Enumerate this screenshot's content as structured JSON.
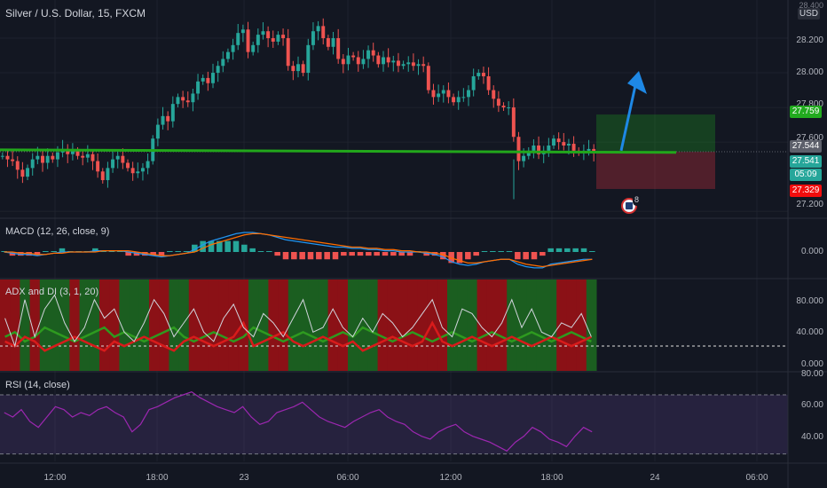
{
  "header": {
    "symbol_title": "Silver / U.S. Dollar, 15, FXCM",
    "currency": "USD",
    "top_tick": "28.400"
  },
  "colors": {
    "up": "#26a69a",
    "down": "#ef5350",
    "bg": "#131722",
    "grid": "#1e222d",
    "support": "#22a71b",
    "macd": "#2196f3",
    "signal": "#ff6d00",
    "rsi": "#9c27b0",
    "adx": "#d1d4dc",
    "di_plus": "#2e9a1f",
    "di_minus": "#d81b1b",
    "arrow": "#2196f3"
  },
  "price_axis": {
    "ticks": [
      "28.200",
      "28.000",
      "27.800",
      "27.600",
      "27.200"
    ],
    "tag_top": "27.759",
    "tag_last": "27.544",
    "tag_current": "27.541",
    "tag_countdown": "05:09",
    "tag_stop": "27.329"
  },
  "events": {
    "badge_count": "8"
  },
  "time_axis": [
    "12:00",
    "18:00",
    "23",
    "06:00",
    "12:00",
    "18:00",
    "24",
    "06:00"
  ],
  "macd": {
    "label": "MACD (12, 26, close, 9)",
    "ticks": [
      "0.000"
    ]
  },
  "adx": {
    "label": "ADX and DI (3, 1, 20)",
    "ticks": [
      "80.000",
      "40.000",
      "0.000"
    ],
    "threshold": 20
  },
  "rsi": {
    "label": "RSI (14, close)",
    "ticks": [
      "80.00",
      "60.00",
      "40.00"
    ],
    "upper": 70,
    "lower": 30
  },
  "chart_data": {
    "type": "candlestick",
    "title": "Silver / U.S. Dollar, 15, FXCM",
    "ylim": [
      27.17,
      28.4
    ],
    "support_level": 27.541,
    "position": {
      "target": 27.759,
      "entry": 27.544,
      "stop": 27.329
    },
    "close_path": [
      27.52,
      27.5,
      27.49,
      27.44,
      27.4,
      27.45,
      27.5,
      27.52,
      27.48,
      27.52,
      27.5,
      27.54,
      27.56,
      27.53,
      27.55,
      27.52,
      27.51,
      27.53,
      27.49,
      27.43,
      27.38,
      27.45,
      27.5,
      27.52,
      27.48,
      27.45,
      27.42,
      27.43,
      27.45,
      27.49,
      27.62,
      27.7,
      27.75,
      27.72,
      27.82,
      27.86,
      27.84,
      27.83,
      27.88,
      27.95,
      27.97,
      27.94,
      28.0,
      28.04,
      28.08,
      28.12,
      28.16,
      28.23,
      28.25,
      28.12,
      28.16,
      28.22,
      28.24,
      28.2,
      28.18,
      28.22,
      28.2,
      28.04,
      28.01,
      28.05,
      28.0,
      28.16,
      28.24,
      28.27,
      28.2,
      28.15,
      28.2,
      28.08,
      28.05,
      28.1,
      28.09,
      28.05,
      28.08,
      28.13,
      28.1,
      28.05,
      28.09,
      28.06,
      28.07,
      28.04,
      28.05,
      28.06,
      28.04,
      28.05,
      28.04,
      27.9,
      27.86,
      27.88,
      27.9,
      27.86,
      27.83,
      27.86,
      27.86,
      27.9,
      27.98,
      28.0,
      27.98,
      27.9,
      27.85,
      27.81,
      27.8,
      27.8,
      27.63,
      27.49,
      27.52,
      27.55,
      27.58,
      27.53,
      27.55,
      27.58,
      27.62,
      27.6,
      27.58,
      27.59,
      27.55,
      27.54,
      27.55,
      27.56,
      27.54
    ],
    "macd_line": [
      0.0,
      -0.01,
      -0.02,
      -0.02,
      -0.03,
      -0.02,
      -0.01,
      0.0,
      0.0,
      0.0,
      0.0,
      0.01,
      0.01,
      0.01,
      0.01,
      0.0,
      -0.01,
      -0.02,
      -0.03,
      -0.04,
      -0.03,
      -0.02,
      -0.01,
      0.02,
      0.06,
      0.09,
      0.11,
      0.13,
      0.15,
      0.16,
      0.16,
      0.15,
      0.14,
      0.12,
      0.1,
      0.09,
      0.08,
      0.07,
      0.06,
      0.05,
      0.04,
      0.04,
      0.03,
      0.03,
      0.02,
      0.02,
      0.01,
      0.01,
      0.0,
      0.0,
      0.0,
      -0.01,
      -0.02,
      -0.04,
      -0.08,
      -0.1,
      -0.11,
      -0.1,
      -0.08,
      -0.07,
      -0.06,
      -0.06,
      -0.1,
      -0.12,
      -0.13,
      -0.13,
      -0.1,
      -0.09,
      -0.08,
      -0.07,
      -0.06,
      -0.06
    ],
    "signal_line": [
      0.0,
      0.0,
      -0.01,
      -0.01,
      -0.02,
      -0.02,
      -0.01,
      -0.01,
      0.0,
      0.0,
      0.0,
      0.0,
      0.01,
      0.01,
      0.01,
      0.01,
      0.0,
      -0.01,
      -0.02,
      -0.03,
      -0.03,
      -0.02,
      -0.01,
      0.0,
      0.03,
      0.06,
      0.08,
      0.1,
      0.12,
      0.14,
      0.15,
      0.15,
      0.14,
      0.13,
      0.12,
      0.11,
      0.1,
      0.09,
      0.08,
      0.07,
      0.06,
      0.05,
      0.04,
      0.04,
      0.03,
      0.03,
      0.02,
      0.02,
      0.01,
      0.01,
      0.0,
      0.0,
      -0.01,
      -0.02,
      -0.05,
      -0.07,
      -0.09,
      -0.09,
      -0.08,
      -0.07,
      -0.06,
      -0.06,
      -0.08,
      -0.1,
      -0.11,
      -0.12,
      -0.11,
      -0.1,
      -0.09,
      -0.08,
      -0.07,
      -0.06
    ],
    "adx_zones": [
      "red",
      "red",
      "green",
      "red",
      "green",
      "green",
      "green",
      "red",
      "green",
      "green",
      "red",
      "red",
      "green",
      "green",
      "green",
      "red",
      "red",
      "green",
      "green",
      "red",
      "red",
      "red",
      "red",
      "red",
      "red",
      "green",
      "green",
      "red",
      "red",
      "green",
      "green",
      "green",
      "green",
      "red",
      "red",
      "green",
      "green",
      "green",
      "red",
      "red",
      "red",
      "red",
      "red",
      "red",
      "red",
      "green",
      "green",
      "green",
      "red",
      "red",
      "red",
      "green",
      "green",
      "green",
      "green",
      "green",
      "red",
      "red",
      "red",
      "green"
    ],
    "adx_line": [
      50,
      20,
      70,
      30,
      60,
      75,
      45,
      25,
      40,
      70,
      50,
      60,
      35,
      25,
      45,
      70,
      55,
      30,
      45,
      60,
      35,
      25,
      50,
      65,
      40,
      30,
      55,
      45,
      30,
      50,
      70,
      35,
      40,
      60,
      40,
      30,
      50,
      35,
      55,
      45,
      30,
      40,
      55,
      70,
      40,
      30,
      60,
      55,
      40,
      30,
      45,
      70,
      40,
      60,
      35,
      30,
      45,
      40,
      55,
      30
    ],
    "di_plus": [
      30,
      35,
      25,
      30,
      40,
      35,
      30,
      25,
      30,
      35,
      40,
      30,
      35,
      30,
      25,
      30,
      35,
      40,
      30,
      25,
      30,
      35,
      30,
      25,
      30,
      40,
      35,
      30,
      25,
      30,
      35,
      30,
      25,
      30,
      35,
      30,
      40,
      35,
      30,
      25,
      30,
      35,
      30,
      25,
      30,
      35,
      30,
      25,
      30,
      35,
      30,
      25,
      30,
      35,
      30,
      25,
      30,
      35,
      30,
      25
    ],
    "di_minus": [
      25,
      20,
      30,
      25,
      15,
      20,
      25,
      30,
      25,
      20,
      15,
      25,
      20,
      25,
      30,
      25,
      20,
      15,
      25,
      30,
      25,
      20,
      25,
      30,
      45,
      20,
      25,
      30,
      35,
      25,
      20,
      25,
      30,
      25,
      20,
      25,
      15,
      20,
      25,
      30,
      25,
      20,
      25,
      45,
      25,
      20,
      25,
      30,
      25,
      20,
      25,
      30,
      25,
      20,
      25,
      30,
      25,
      20,
      25,
      30
    ],
    "rsi_values": [
      58,
      55,
      60,
      52,
      48,
      55,
      62,
      60,
      55,
      58,
      56,
      60,
      62,
      58,
      55,
      45,
      50,
      60,
      62,
      65,
      68,
      70,
      72,
      68,
      65,
      62,
      60,
      58,
      62,
      55,
      50,
      52,
      58,
      60,
      62,
      65,
      60,
      55,
      52,
      50,
      48,
      52,
      55,
      58,
      60,
      55,
      52,
      50,
      45,
      42,
      40,
      45,
      48,
      50,
      45,
      42,
      40,
      38,
      35,
      32,
      38,
      42,
      48,
      45,
      40,
      38,
      35,
      42,
      48,
      45
    ]
  }
}
